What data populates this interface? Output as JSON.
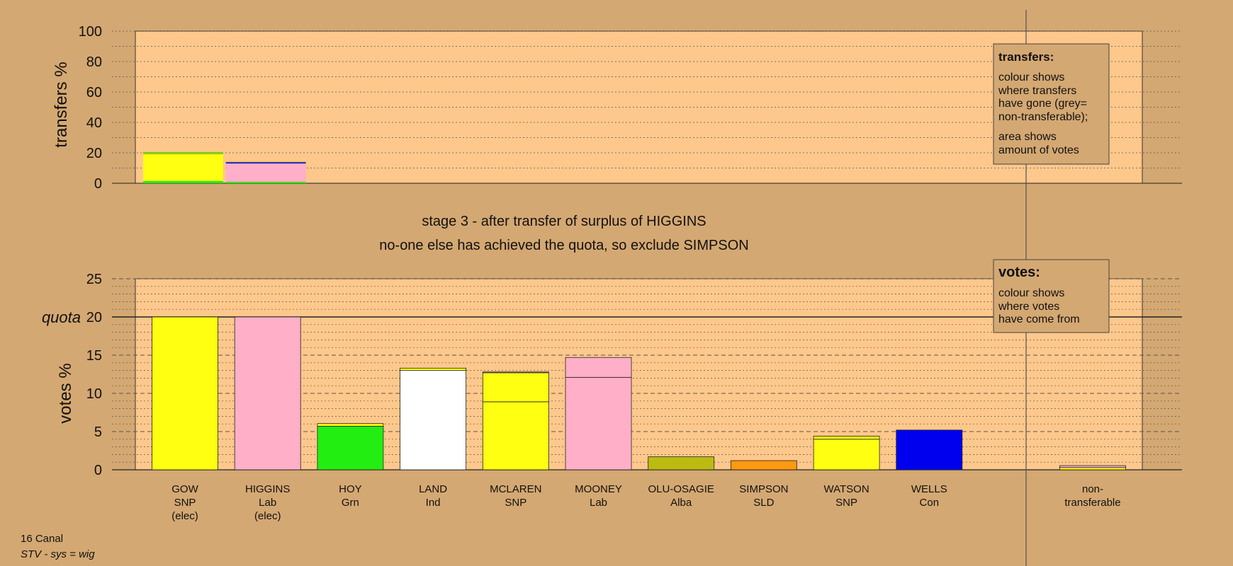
{
  "colors": {
    "page": "#d4a872",
    "plot": "#fec88c",
    "SNP": "#ffff11",
    "Lab": "#ffafc8",
    "Grn": "#22ee11",
    "Ind": "#ffffff",
    "Alba": "#bbbb11",
    "SLD": "#ff9911",
    "Con": "#0000ee"
  },
  "stage": {
    "line1": "stage 3 - after transfer of surplus of HIGGINS",
    "line2": "no-one else has achieved the quota, so exclude SIMPSON"
  },
  "footer": {
    "ward": "16 Canal",
    "system": "STV - sys = wig"
  },
  "legend_transfers": {
    "title": "transfers:",
    "text1": [
      "colour shows",
      "where transfers",
      "have gone (grey=",
      "non-transferable);"
    ],
    "text2": [
      "area shows",
      "amount of votes"
    ]
  },
  "legend_votes": {
    "title": "votes:",
    "text1": [
      "colour shows",
      "where votes",
      "have come from"
    ]
  },
  "chart_data": [
    {
      "type": "bar",
      "ylabel": "transfers %",
      "ylim": [
        0,
        100
      ],
      "yticks": [
        0,
        20,
        40,
        60,
        80,
        100
      ],
      "bars": [
        {
          "slot": 0,
          "segments": [
            {
              "party": "Grn",
              "value": 1.5
            },
            {
              "party": "SNP",
              "value": 17.5
            },
            {
              "party": "Alba",
              "value": 1.0
            },
            {
              "party": "Grn",
              "value": 0.5
            }
          ]
        },
        {
          "slot": 1,
          "segments": [
            {
              "party": "Grn",
              "value": 1.0
            },
            {
              "party": "Lab",
              "value": 12.0
            },
            {
              "party": "Con",
              "value": 0.8
            },
            {
              "party": "Alba",
              "value": 0.4
            }
          ]
        }
      ]
    },
    {
      "type": "bar",
      "ylabel": "votes %",
      "ylim": [
        0,
        25
      ],
      "yticks": [
        0,
        5,
        10,
        15,
        20,
        25
      ],
      "quota": 20,
      "quota_label": "quota",
      "candidates": [
        {
          "name": "GOW",
          "party": "SNP",
          "status": "(elec)",
          "segments": [
            {
              "party": "SNP",
              "value": 20.0
            }
          ]
        },
        {
          "name": "HIGGINS",
          "party": "Lab",
          "status": "(elec)",
          "segments": [
            {
              "party": "Lab",
              "value": 20.0
            }
          ]
        },
        {
          "name": "HOY",
          "party": "Grn",
          "status": "",
          "segments": [
            {
              "party": "Grn",
              "value": 5.7
            },
            {
              "party": "SNP",
              "value": 0.35
            }
          ]
        },
        {
          "name": "LAND",
          "party": "Ind",
          "status": "",
          "segments": [
            {
              "party": "Ind",
              "value": 13.0
            },
            {
              "party": "SNP",
              "value": 0.3
            }
          ]
        },
        {
          "name": "MCLAREN",
          "party": "SNP",
          "status": "",
          "segments": [
            {
              "party": "SNP",
              "value": 8.9
            },
            {
              "party": "SNP",
              "value": 3.8
            },
            {
              "party": "Lab",
              "value": 0.1
            }
          ]
        },
        {
          "name": "MOONEY",
          "party": "Lab",
          "status": "",
          "segments": [
            {
              "party": "Lab",
              "value": 12.1
            },
            {
              "party": "Lab",
              "value": 2.6
            }
          ]
        },
        {
          "name": "OLU-OSAGIE",
          "party": "Alba",
          "status": "",
          "segments": [
            {
              "party": "Alba",
              "value": 1.7
            }
          ]
        },
        {
          "name": "SIMPSON",
          "party": "SLD",
          "status": "",
          "segments": [
            {
              "party": "SLD",
              "value": 1.2
            }
          ]
        },
        {
          "name": "WATSON",
          "party": "SNP",
          "status": "",
          "segments": [
            {
              "party": "SNP",
              "value": 4.0
            },
            {
              "party": "SNP",
              "value": 0.4
            }
          ]
        },
        {
          "name": "WELLS",
          "party": "Con",
          "status": "",
          "segments": [
            {
              "party": "Con",
              "value": 5.2
            }
          ]
        }
      ],
      "nontransferable": {
        "label_line1": "non-",
        "label_line2": "transferable",
        "segments": [
          {
            "party": "SNP",
            "value": 0.3
          },
          {
            "party": "Lab",
            "value": 0.25
          }
        ]
      }
    }
  ]
}
